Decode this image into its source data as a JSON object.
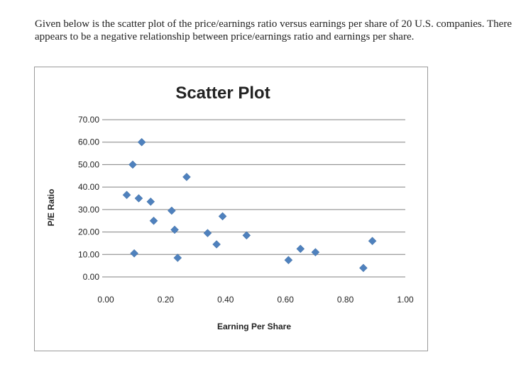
{
  "intro_text": "Given below is the scatter plot of the price/earnings ratio versus earnings per share of 20 U.S. companies. There appears to be a negative relationship between price/earnings ratio and earnings per share.",
  "colors": {
    "marker": "#4f81bd",
    "grid": "#808080",
    "text": "#222222"
  },
  "chart_data": {
    "type": "scatter",
    "title": "Scatter Plot",
    "xlabel": "Earning Per Share",
    "ylabel": "P/E Ratio",
    "xlim": [
      0,
      1
    ],
    "ylim": [
      0,
      70
    ],
    "x_ticks": [
      "0.00",
      "0.20",
      "0.40",
      "0.60",
      "0.80",
      "1.00"
    ],
    "y_ticks": [
      "0.00",
      "10.00",
      "20.00",
      "30.00",
      "40.00",
      "50.00",
      "60.00",
      "70.00"
    ],
    "grid": "horizontal",
    "legend": "none",
    "series": [
      {
        "points": [
          [
            0.07,
            36.5
          ],
          [
            0.09,
            50.0
          ],
          [
            0.095,
            10.5
          ],
          [
            0.11,
            35.0
          ],
          [
            0.12,
            60.0
          ],
          [
            0.15,
            33.5
          ],
          [
            0.16,
            25.0
          ],
          [
            0.22,
            29.5
          ],
          [
            0.23,
            21.0
          ],
          [
            0.24,
            8.5
          ],
          [
            0.27,
            44.5
          ],
          [
            0.34,
            19.5
          ],
          [
            0.37,
            14.5
          ],
          [
            0.39,
            27.0
          ],
          [
            0.47,
            18.5
          ],
          [
            0.61,
            7.5
          ],
          [
            0.65,
            12.5
          ],
          [
            0.7,
            11.0
          ],
          [
            0.86,
            4.0
          ],
          [
            0.89,
            16.0
          ]
        ]
      }
    ]
  }
}
